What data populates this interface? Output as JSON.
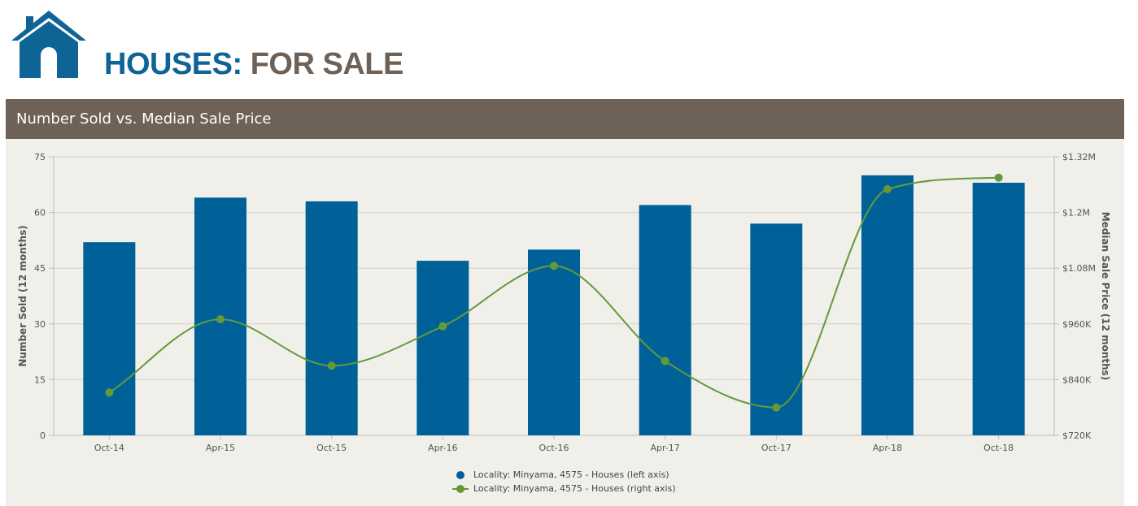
{
  "header": {
    "title_part1": "HOUSES:",
    "title_part2": "FOR SALE",
    "logo_color": "#0e6494",
    "title_color": "#6e6157"
  },
  "panel": {
    "title": "Number Sold vs. Median Sale Price",
    "header_color": "#6e6157",
    "background_color": "#f0efea"
  },
  "chart_data": {
    "type": "bar+line",
    "title": "Number Sold vs. Median Sale Price",
    "categories": [
      "Oct-14",
      "Apr-15",
      "Oct-15",
      "Apr-16",
      "Oct-16",
      "Apr-17",
      "Oct-17",
      "Apr-18",
      "Oct-18"
    ],
    "ylabel_left": "Number Sold (12 months)",
    "ylabel_right": "Median Sale Price (12 months)",
    "ylim_left": [
      0,
      75
    ],
    "yticks_left": [
      "0",
      "15",
      "30",
      "45",
      "60",
      "75"
    ],
    "ylim_right": [
      720000,
      1320000
    ],
    "yticks_right": [
      "$720K",
      "$840K",
      "$960K",
      "$1.08M",
      "$1.2M",
      "$1.32M"
    ],
    "grid": true,
    "legend_position": "bottom-center",
    "series": [
      {
        "name": "Locality: Minyama, 4575 - Houses (left axis)",
        "type": "bar",
        "axis": "left",
        "color": "#006199",
        "values": [
          52,
          64,
          63,
          47,
          50,
          62,
          57,
          70,
          68
        ]
      },
      {
        "name": "Locality: Minyama, 4575 - Houses (right axis)",
        "type": "line",
        "axis": "right",
        "color": "#64993a",
        "values": [
          812000,
          970000,
          870000,
          955000,
          1085000,
          880000,
          780000,
          1250000,
          1275000
        ]
      }
    ]
  }
}
